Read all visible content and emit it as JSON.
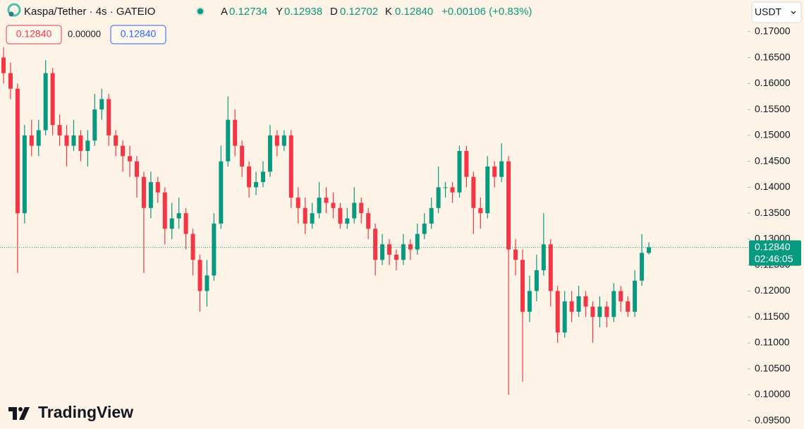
{
  "chart_data": {
    "type": "candlestick",
    "title": "Kaspa/Tether · 4s · GATEIO",
    "ohlc_labels": [
      "A",
      "Y",
      "D",
      "K"
    ],
    "ohlc_values": [
      "0.12734",
      "0.12938",
      "0.12702",
      "0.12840"
    ],
    "change": "+0.00106 (+0.83%)",
    "currency": "USDT",
    "toolbar": {
      "sell": "0.12840",
      "spread": "0.00000",
      "buy": "0.12840"
    },
    "last_price": 0.1284,
    "last_price_label": "0.12840",
    "countdown": "02:46:05",
    "brand": "TradingView",
    "up_color": "#089981",
    "down_color": "#f23645",
    "grid": false,
    "ylim": [
      0.0934,
      0.1761
    ],
    "yticks": [
      {
        "value": 0.17,
        "label": "0.17000"
      },
      {
        "value": 0.165,
        "label": "0.16500"
      },
      {
        "value": 0.16,
        "label": "0.16000"
      },
      {
        "value": 0.155,
        "label": "0.15500"
      },
      {
        "value": 0.15,
        "label": "0.15000"
      },
      {
        "value": 0.145,
        "label": "0.14500"
      },
      {
        "value": 0.14,
        "label": "0.14000"
      },
      {
        "value": 0.135,
        "label": "0.13500"
      },
      {
        "value": 0.13,
        "label": "0.13000"
      },
      {
        "value": 0.125,
        "label": "0.12500"
      },
      {
        "value": 0.12,
        "label": "0.12000"
      },
      {
        "value": 0.115,
        "label": "0.11500"
      },
      {
        "value": 0.11,
        "label": "0.11000"
      },
      {
        "value": 0.105,
        "label": "0.10500"
      },
      {
        "value": 0.1,
        "label": "0.10000"
      },
      {
        "value": 0.095,
        "label": "0.09500"
      }
    ],
    "open": [
      0.165,
      0.162,
      0.159,
      0.135,
      0.15,
      0.148,
      0.151,
      0.162,
      0.152,
      0.15,
      0.148,
      0.15,
      0.147,
      0.149,
      0.155,
      0.157,
      0.15,
      0.148,
      0.146,
      0.145,
      0.142,
      0.136,
      0.141,
      0.139,
      0.132,
      0.134,
      0.135,
      0.131,
      0.126,
      0.12,
      0.123,
      0.133,
      0.145,
      0.153,
      0.148,
      0.144,
      0.14,
      0.141,
      0.143,
      0.15,
      0.148,
      0.15,
      0.138,
      0.136,
      0.133,
      0.135,
      0.138,
      0.137,
      0.136,
      0.133,
      0.134,
      0.137,
      0.135,
      0.132,
      0.126,
      0.129,
      0.127,
      0.126,
      0.129,
      0.128,
      0.131,
      0.133,
      0.136,
      0.14,
      0.14,
      0.139,
      0.147,
      0.142,
      0.136,
      0.135,
      0.144,
      0.142,
      0.145,
      0.128,
      0.126,
      0.116,
      0.12,
      0.124,
      0.129,
      0.12,
      0.112,
      0.118,
      0.116,
      0.119,
      0.117,
      0.115,
      0.117,
      0.115,
      0.12,
      0.118,
      0.116,
      0.122,
      0.12734
    ],
    "high": [
      0.167,
      0.164,
      0.16,
      0.152,
      0.153,
      0.153,
      0.1645,
      0.163,
      0.154,
      0.152,
      0.153,
      0.151,
      0.151,
      0.158,
      0.159,
      0.158,
      0.151,
      0.149,
      0.148,
      0.146,
      0.143,
      0.143,
      0.142,
      0.14,
      0.137,
      0.138,
      0.136,
      0.132,
      0.127,
      0.126,
      0.135,
      0.148,
      0.1575,
      0.155,
      0.149,
      0.145,
      0.143,
      0.145,
      0.152,
      0.151,
      0.151,
      0.151,
      0.14,
      0.138,
      0.137,
      0.141,
      0.14,
      0.139,
      0.137,
      0.136,
      0.14,
      0.138,
      0.136,
      0.133,
      0.131,
      0.13,
      0.128,
      0.131,
      0.13,
      0.133,
      0.135,
      0.138,
      0.144,
      0.141,
      0.141,
      0.148,
      0.148,
      0.143,
      0.138,
      0.146,
      0.145,
      0.1485,
      0.146,
      0.13,
      0.128,
      0.123,
      0.127,
      0.135,
      0.13,
      0.121,
      0.12,
      0.12,
      0.121,
      0.12,
      0.118,
      0.119,
      0.118,
      0.1215,
      0.121,
      0.119,
      0.124,
      0.131,
      0.12938
    ],
    "low": [
      0.16,
      0.157,
      0.1235,
      0.133,
      0.146,
      0.146,
      0.15,
      0.15,
      0.148,
      0.144,
      0.147,
      0.145,
      0.144,
      0.148,
      0.153,
      0.148,
      0.146,
      0.143,
      0.142,
      0.138,
      0.1235,
      0.134,
      0.137,
      0.129,
      0.13,
      0.132,
      0.128,
      0.123,
      0.116,
      0.117,
      0.122,
      0.132,
      0.144,
      0.146,
      0.142,
      0.138,
      0.1385,
      0.14,
      0.142,
      0.146,
      0.147,
      0.136,
      0.133,
      0.131,
      0.132,
      0.134,
      0.135,
      0.134,
      0.132,
      0.132,
      0.133,
      0.133,
      0.13,
      0.123,
      0.125,
      0.125,
      0.124,
      0.125,
      0.126,
      0.127,
      0.13,
      0.132,
      0.135,
      0.138,
      0.137,
      0.138,
      0.14,
      0.131,
      0.132,
      0.134,
      0.14,
      0.141,
      0.1,
      0.123,
      0.1025,
      0.114,
      0.118,
      0.123,
      0.117,
      0.11,
      0.111,
      0.114,
      0.115,
      0.115,
      0.11,
      0.113,
      0.113,
      0.114,
      0.116,
      0.115,
      0.115,
      0.121,
      0.12702
    ],
    "close": [
      0.162,
      0.159,
      0.135,
      0.15,
      0.148,
      0.151,
      0.162,
      0.152,
      0.15,
      0.148,
      0.15,
      0.147,
      0.149,
      0.155,
      0.157,
      0.15,
      0.148,
      0.146,
      0.145,
      0.142,
      0.136,
      0.141,
      0.139,
      0.132,
      0.134,
      0.135,
      0.131,
      0.126,
      0.12,
      0.123,
      0.133,
      0.145,
      0.153,
      0.148,
      0.144,
      0.14,
      0.141,
      0.143,
      0.15,
      0.148,
      0.15,
      0.138,
      0.136,
      0.133,
      0.135,
      0.138,
      0.137,
      0.136,
      0.133,
      0.134,
      0.137,
      0.135,
      0.132,
      0.126,
      0.129,
      0.127,
      0.126,
      0.129,
      0.128,
      0.131,
      0.133,
      0.136,
      0.14,
      0.14,
      0.139,
      0.147,
      0.142,
      0.136,
      0.135,
      0.144,
      0.142,
      0.145,
      0.128,
      0.126,
      0.116,
      0.12,
      0.124,
      0.129,
      0.12,
      0.112,
      0.118,
      0.116,
      0.119,
      0.117,
      0.115,
      0.117,
      0.115,
      0.12,
      0.118,
      0.116,
      0.122,
      0.12734,
      0.1284
    ]
  }
}
